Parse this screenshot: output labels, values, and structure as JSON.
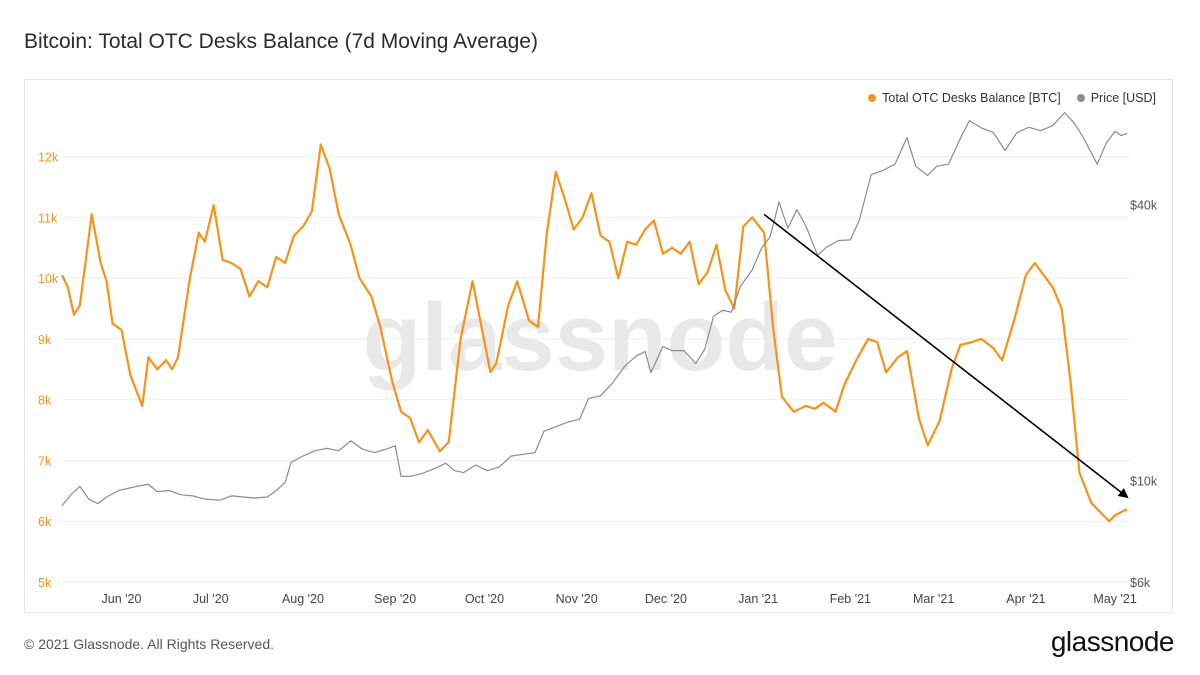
{
  "title": "Bitcoin: Total OTC Desks Balance (7d Moving Average)",
  "watermark": "glassnode",
  "footer": {
    "copyright": "© 2021 Glassnode. All Rights Reserved.",
    "logo": "glassnode"
  },
  "colors": {
    "balance": "#F7931A",
    "price": "#8C8C8C",
    "grid": "#EEEEEE",
    "arrow": "#000000"
  },
  "chart_data": {
    "type": "line",
    "title": "Bitcoin: Total OTC Desks Balance (7d Moving Average)",
    "legend_position": "top-right",
    "grid": true,
    "x_ticks": [
      {
        "date": "2020-06-01",
        "label": "Jun '20"
      },
      {
        "date": "2020-07-01",
        "label": "Jul '20"
      },
      {
        "date": "2020-08-01",
        "label": "Aug '20"
      },
      {
        "date": "2020-09-01",
        "label": "Sep '20"
      },
      {
        "date": "2020-10-01",
        "label": "Oct '20"
      },
      {
        "date": "2020-11-01",
        "label": "Nov '20"
      },
      {
        "date": "2020-12-01",
        "label": "Dec '20"
      },
      {
        "date": "2021-01-01",
        "label": "Jan '21"
      },
      {
        "date": "2021-02-01",
        "label": "Feb '21"
      },
      {
        "date": "2021-03-01",
        "label": "Mar '21"
      },
      {
        "date": "2021-04-01",
        "label": "Apr '21"
      },
      {
        "date": "2021-05-01",
        "label": "May '21"
      }
    ],
    "xlim": [
      "2020-05-12",
      "2021-05-06"
    ],
    "y_left": {
      "ylim": [
        5000,
        12800
      ],
      "ticks": [
        5000,
        6000,
        7000,
        8000,
        9000,
        10000,
        11000,
        12000
      ],
      "tick_labels": [
        "5k",
        "6k",
        "7k",
        "8k",
        "9k",
        "10k",
        "11k",
        "12k"
      ]
    },
    "y_right": {
      "scale": "log",
      "ylim": [
        6000,
        65000
      ],
      "ticks": [
        6000,
        10000,
        40000
      ],
      "tick_labels": [
        "$6k",
        "$10k",
        "$40k"
      ]
    },
    "series": [
      {
        "name": "Total OTC Desks Balance [BTC]",
        "axis": "left",
        "points": [
          [
            "2020-05-12",
            10050
          ],
          [
            "2020-05-14",
            9850
          ],
          [
            "2020-05-16",
            9400
          ],
          [
            "2020-05-18",
            9550
          ],
          [
            "2020-05-20",
            10300
          ],
          [
            "2020-05-22",
            11050
          ],
          [
            "2020-05-25",
            10250
          ],
          [
            "2020-05-27",
            9950
          ],
          [
            "2020-05-29",
            9250
          ],
          [
            "2020-06-01",
            9150
          ],
          [
            "2020-06-04",
            8400
          ],
          [
            "2020-06-08",
            7900
          ],
          [
            "2020-06-10",
            8700
          ],
          [
            "2020-06-13",
            8500
          ],
          [
            "2020-06-16",
            8650
          ],
          [
            "2020-06-18",
            8500
          ],
          [
            "2020-06-20",
            8700
          ],
          [
            "2020-06-24",
            10000
          ],
          [
            "2020-06-27",
            10750
          ],
          [
            "2020-06-29",
            10600
          ],
          [
            "2020-07-02",
            11200
          ],
          [
            "2020-07-05",
            10300
          ],
          [
            "2020-07-08",
            10250
          ],
          [
            "2020-07-11",
            10150
          ],
          [
            "2020-07-14",
            9700
          ],
          [
            "2020-07-17",
            9950
          ],
          [
            "2020-07-20",
            9850
          ],
          [
            "2020-07-23",
            10350
          ],
          [
            "2020-07-26",
            10250
          ],
          [
            "2020-07-29",
            10700
          ],
          [
            "2020-08-01",
            10850
          ],
          [
            "2020-08-04",
            11100
          ],
          [
            "2020-08-07",
            12200
          ],
          [
            "2020-08-10",
            11800
          ],
          [
            "2020-08-13",
            11050
          ],
          [
            "2020-08-17",
            10550
          ],
          [
            "2020-08-20",
            10000
          ],
          [
            "2020-08-24",
            9700
          ],
          [
            "2020-08-27",
            9200
          ],
          [
            "2020-08-31",
            8300
          ],
          [
            "2020-09-03",
            7800
          ],
          [
            "2020-09-06",
            7700
          ],
          [
            "2020-09-09",
            7300
          ],
          [
            "2020-09-12",
            7500
          ],
          [
            "2020-09-16",
            7150
          ],
          [
            "2020-09-19",
            7300
          ],
          [
            "2020-09-23",
            9000
          ],
          [
            "2020-09-27",
            9950
          ],
          [
            "2020-09-30",
            9200
          ],
          [
            "2020-10-03",
            8450
          ],
          [
            "2020-10-05",
            8600
          ],
          [
            "2020-10-09",
            9550
          ],
          [
            "2020-10-12",
            9950
          ],
          [
            "2020-10-16",
            9300
          ],
          [
            "2020-10-19",
            9200
          ],
          [
            "2020-10-22",
            10750
          ],
          [
            "2020-10-25",
            11750
          ],
          [
            "2020-10-28",
            11300
          ],
          [
            "2020-10-31",
            10800
          ],
          [
            "2020-11-03",
            11000
          ],
          [
            "2020-11-06",
            11400
          ],
          [
            "2020-11-09",
            10700
          ],
          [
            "2020-11-12",
            10600
          ],
          [
            "2020-11-15",
            10000
          ],
          [
            "2020-11-18",
            10600
          ],
          [
            "2020-11-21",
            10550
          ],
          [
            "2020-11-24",
            10800
          ],
          [
            "2020-11-27",
            10950
          ],
          [
            "2020-11-30",
            10400
          ],
          [
            "2020-12-03",
            10500
          ],
          [
            "2020-12-06",
            10400
          ],
          [
            "2020-12-09",
            10600
          ],
          [
            "2020-12-12",
            9900
          ],
          [
            "2020-12-15",
            10100
          ],
          [
            "2020-12-18",
            10550
          ],
          [
            "2020-12-21",
            9800
          ],
          [
            "2020-12-24",
            9500
          ],
          [
            "2020-12-27",
            10850
          ],
          [
            "2020-12-30",
            11000
          ],
          [
            "2021-01-03",
            10750
          ],
          [
            "2021-01-06",
            9200
          ],
          [
            "2021-01-09",
            8050
          ],
          [
            "2021-01-13",
            7800
          ],
          [
            "2021-01-17",
            7900
          ],
          [
            "2021-01-20",
            7850
          ],
          [
            "2021-01-23",
            7950
          ],
          [
            "2021-01-27",
            7800
          ],
          [
            "2021-01-30",
            8250
          ],
          [
            "2021-02-03",
            8650
          ],
          [
            "2021-02-07",
            9000
          ],
          [
            "2021-02-10",
            8950
          ],
          [
            "2021-02-13",
            8450
          ],
          [
            "2021-02-17",
            8700
          ],
          [
            "2021-02-20",
            8800
          ],
          [
            "2021-02-24",
            7700
          ],
          [
            "2021-02-27",
            7250
          ],
          [
            "2021-03-03",
            7650
          ],
          [
            "2021-03-07",
            8500
          ],
          [
            "2021-03-10",
            8900
          ],
          [
            "2021-03-14",
            8950
          ],
          [
            "2021-03-17",
            9000
          ],
          [
            "2021-03-21",
            8850
          ],
          [
            "2021-03-24",
            8650
          ],
          [
            "2021-03-28",
            9300
          ],
          [
            "2021-04-01",
            10050
          ],
          [
            "2021-04-04",
            10250
          ],
          [
            "2021-04-07",
            10050
          ],
          [
            "2021-04-10",
            9850
          ],
          [
            "2021-04-13",
            9500
          ],
          [
            "2021-04-16",
            8300
          ],
          [
            "2021-04-19",
            6800
          ],
          [
            "2021-04-23",
            6300
          ],
          [
            "2021-04-26",
            6150
          ],
          [
            "2021-04-29",
            6000
          ],
          [
            "2021-05-01",
            6100
          ],
          [
            "2021-05-03",
            6150
          ],
          [
            "2021-05-05",
            6200
          ]
        ]
      },
      {
        "name": "Price [USD]",
        "axis": "right",
        "points": [
          [
            "2020-05-12",
            8800
          ],
          [
            "2020-05-15",
            9300
          ],
          [
            "2020-05-18",
            9700
          ],
          [
            "2020-05-21",
            9100
          ],
          [
            "2020-05-24",
            8900
          ],
          [
            "2020-05-27",
            9200
          ],
          [
            "2020-05-31",
            9500
          ],
          [
            "2020-06-03",
            9600
          ],
          [
            "2020-06-06",
            9700
          ],
          [
            "2020-06-10",
            9800
          ],
          [
            "2020-06-13",
            9450
          ],
          [
            "2020-06-17",
            9500
          ],
          [
            "2020-06-21",
            9300
          ],
          [
            "2020-06-25",
            9250
          ],
          [
            "2020-06-29",
            9100
          ],
          [
            "2020-07-04",
            9050
          ],
          [
            "2020-07-08",
            9250
          ],
          [
            "2020-07-12",
            9200
          ],
          [
            "2020-07-16",
            9150
          ],
          [
            "2020-07-20",
            9200
          ],
          [
            "2020-07-23",
            9500
          ],
          [
            "2020-07-26",
            9900
          ],
          [
            "2020-07-28",
            10950
          ],
          [
            "2020-08-01",
            11300
          ],
          [
            "2020-08-05",
            11600
          ],
          [
            "2020-08-09",
            11750
          ],
          [
            "2020-08-13",
            11600
          ],
          [
            "2020-08-17",
            12200
          ],
          [
            "2020-08-21",
            11700
          ],
          [
            "2020-08-25",
            11500
          ],
          [
            "2020-08-29",
            11700
          ],
          [
            "2020-09-01",
            11900
          ],
          [
            "2020-09-03",
            10200
          ],
          [
            "2020-09-06",
            10200
          ],
          [
            "2020-09-10",
            10350
          ],
          [
            "2020-09-14",
            10600
          ],
          [
            "2020-09-18",
            10900
          ],
          [
            "2020-09-21",
            10500
          ],
          [
            "2020-09-24",
            10400
          ],
          [
            "2020-09-28",
            10800
          ],
          [
            "2020-10-02",
            10500
          ],
          [
            "2020-10-06",
            10700
          ],
          [
            "2020-10-10",
            11300
          ],
          [
            "2020-10-14",
            11400
          ],
          [
            "2020-10-18",
            11500
          ],
          [
            "2020-10-21",
            12800
          ],
          [
            "2020-10-25",
            13100
          ],
          [
            "2020-10-29",
            13400
          ],
          [
            "2020-11-02",
            13600
          ],
          [
            "2020-11-05",
            15100
          ],
          [
            "2020-11-09",
            15300
          ],
          [
            "2020-11-13",
            16300
          ],
          [
            "2020-11-17",
            17700
          ],
          [
            "2020-11-21",
            18700
          ],
          [
            "2020-11-24",
            19100
          ],
          [
            "2020-11-26",
            17200
          ],
          [
            "2020-11-30",
            19600
          ],
          [
            "2020-12-03",
            19200
          ],
          [
            "2020-12-07",
            19200
          ],
          [
            "2020-12-11",
            18000
          ],
          [
            "2020-12-14",
            19300
          ],
          [
            "2020-12-17",
            22800
          ],
          [
            "2020-12-20",
            23500
          ],
          [
            "2020-12-23",
            23300
          ],
          [
            "2020-12-26",
            26500
          ],
          [
            "2020-12-30",
            28800
          ],
          [
            "2021-01-02",
            32000
          ],
          [
            "2021-01-05",
            34000
          ],
          [
            "2021-01-08",
            40500
          ],
          [
            "2021-01-11",
            35500
          ],
          [
            "2021-01-14",
            39000
          ],
          [
            "2021-01-17",
            36000
          ],
          [
            "2021-01-21",
            31000
          ],
          [
            "2021-01-24",
            32300
          ],
          [
            "2021-01-28",
            33400
          ],
          [
            "2021-02-01",
            33500
          ],
          [
            "2021-02-04",
            37000
          ],
          [
            "2021-02-08",
            46500
          ],
          [
            "2021-02-12",
            47500
          ],
          [
            "2021-02-16",
            49000
          ],
          [
            "2021-02-20",
            56000
          ],
          [
            "2021-02-23",
            48500
          ],
          [
            "2021-02-27",
            46300
          ],
          [
            "2021-03-02",
            48500
          ],
          [
            "2021-03-06",
            49000
          ],
          [
            "2021-03-10",
            55800
          ],
          [
            "2021-03-13",
            61000
          ],
          [
            "2021-03-17",
            58800
          ],
          [
            "2021-03-21",
            57500
          ],
          [
            "2021-03-25",
            52500
          ],
          [
            "2021-03-29",
            57500
          ],
          [
            "2021-04-02",
            59000
          ],
          [
            "2021-04-06",
            58000
          ],
          [
            "2021-04-10",
            59500
          ],
          [
            "2021-04-14",
            63500
          ],
          [
            "2021-04-17",
            60500
          ],
          [
            "2021-04-20",
            56500
          ],
          [
            "2021-04-25",
            49000
          ],
          [
            "2021-04-28",
            54500
          ],
          [
            "2021-05-01",
            57800
          ],
          [
            "2021-05-03",
            56600
          ],
          [
            "2021-05-05",
            57200
          ]
        ]
      }
    ],
    "annotations": [
      {
        "type": "arrow",
        "axis": "left",
        "from": [
          "2021-01-03",
          11050
        ],
        "to": [
          "2021-05-05",
          6400
        ]
      }
    ]
  }
}
